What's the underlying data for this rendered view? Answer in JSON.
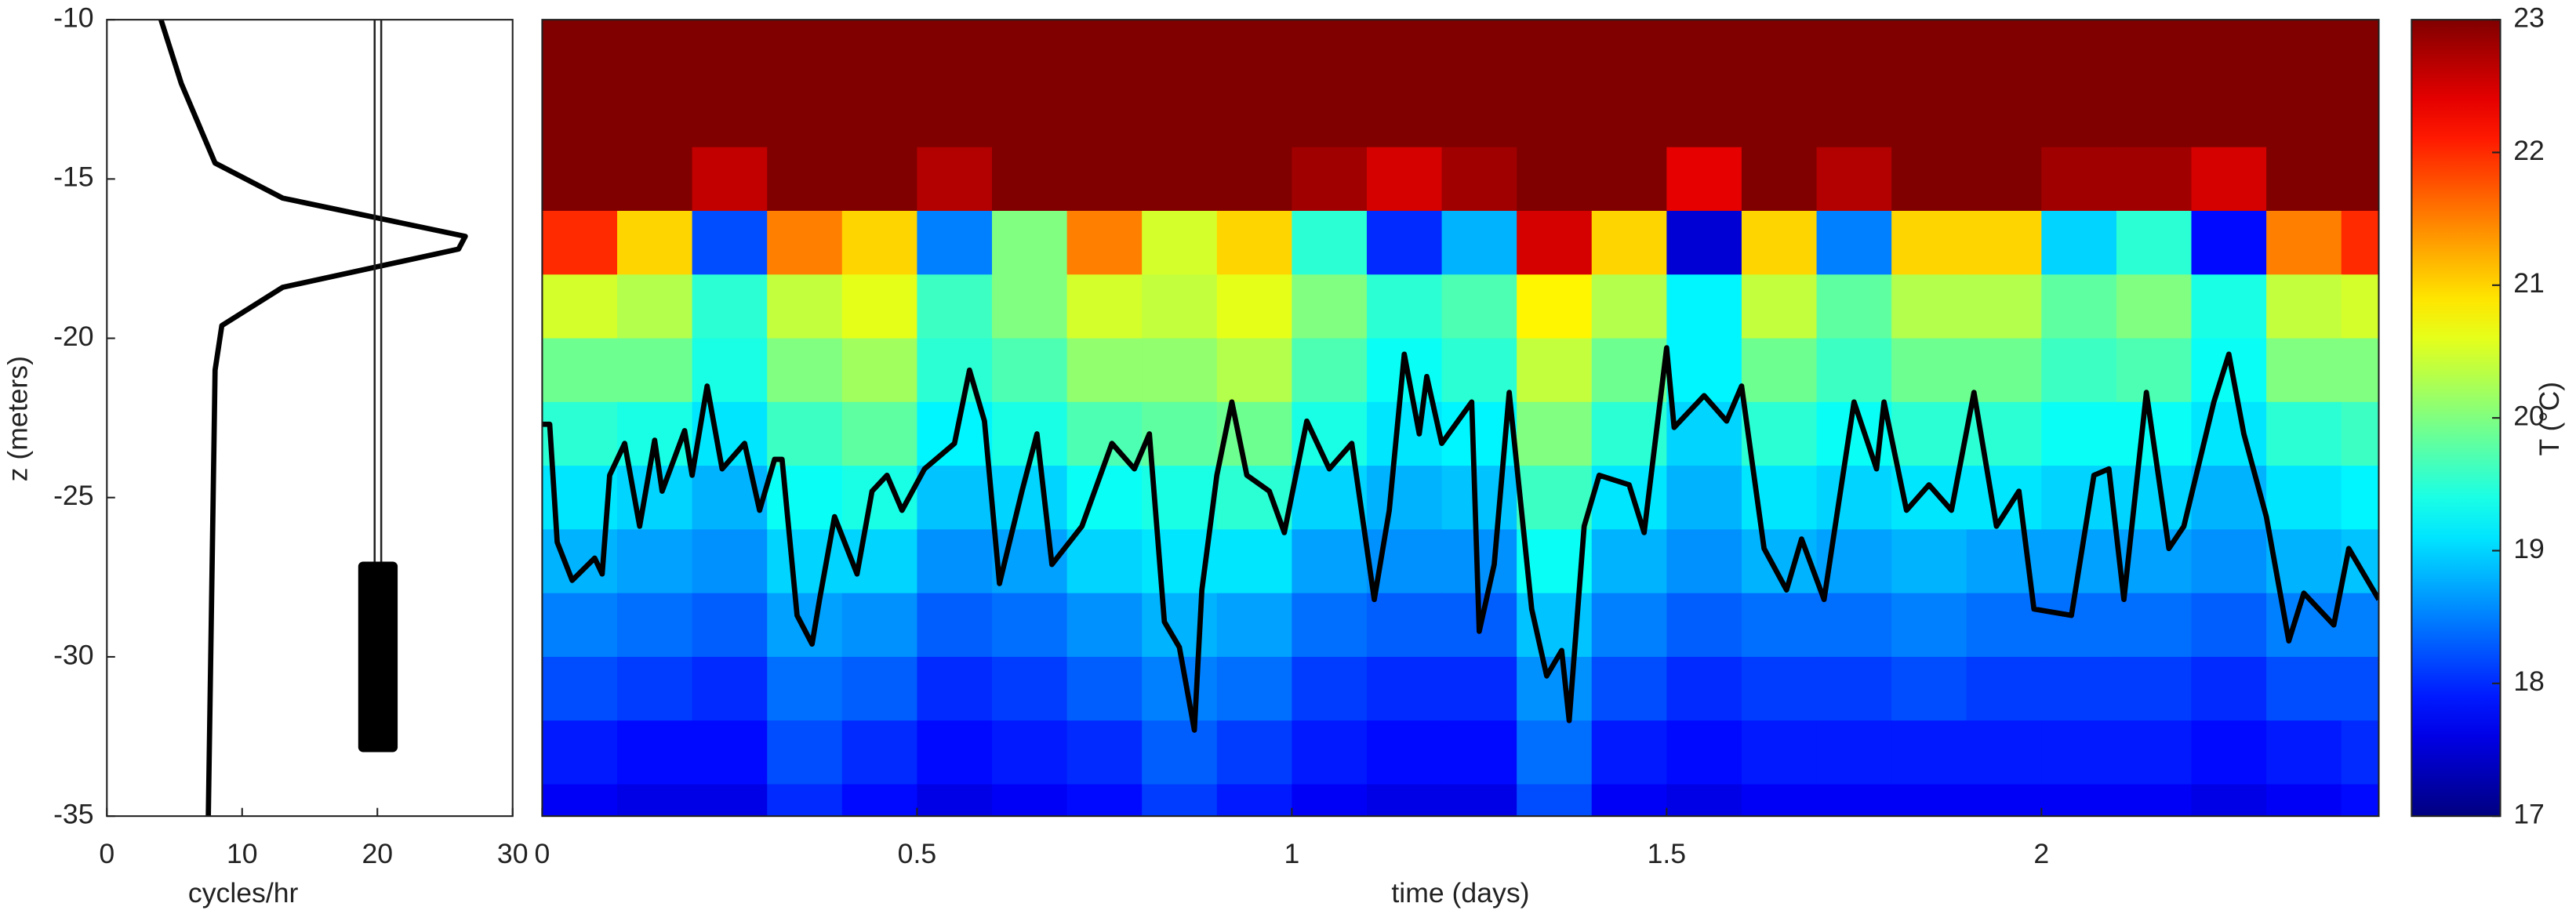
{
  "chart_data": [
    {
      "type": "line",
      "xlabel": "cycles/hr",
      "ylabel": "z (meters)",
      "xlim": [
        0,
        30
      ],
      "xticks": [
        0,
        10,
        20,
        30
      ],
      "ylim": [
        -35,
        -10
      ],
      "yticks": [
        -35,
        -30,
        -25,
        -20,
        -15,
        -10
      ],
      "color": "#000000",
      "x": [
        4,
        5.5,
        7,
        8,
        13,
        26.5,
        26,
        13,
        8.5,
        8,
        7.5
      ],
      "values": [
        -10,
        -12,
        -13.5,
        -14.5,
        -15.6,
        -16.8,
        -17.2,
        -18.4,
        -19.6,
        -21,
        -35
      ]
    },
    {
      "type": "heatmap",
      "xlabel": "time (days)",
      "xlim": [
        0,
        2.45
      ],
      "xticks": [
        0,
        0.5,
        1,
        1.5,
        2
      ],
      "ylim": [
        -35,
        -10
      ],
      "x": [
        0.05,
        0.15,
        0.25,
        0.35,
        0.45,
        0.55,
        0.65,
        0.75,
        0.85,
        0.95,
        1.05,
        1.15,
        1.25,
        1.35,
        1.45,
        1.55,
        1.65,
        1.75,
        1.85,
        1.95,
        2.05,
        2.15,
        2.25,
        2.35,
        2.45
      ],
      "y": [
        -11,
        -13,
        -15,
        -17,
        -19,
        -21,
        -23,
        -25,
        -27,
        -29,
        -31,
        -33,
        -35
      ],
      "values": [
        [
          23,
          23,
          23,
          23,
          23,
          23,
          23,
          23,
          23,
          23,
          23,
          23,
          23,
          23,
          23,
          23,
          23,
          23,
          23,
          23,
          23,
          23,
          23,
          23,
          23
        ],
        [
          23,
          23,
          23,
          23,
          23,
          23,
          23,
          23,
          23,
          23,
          23,
          23,
          23,
          23,
          23,
          23,
          23,
          23,
          23,
          23,
          23,
          23,
          23,
          23,
          23
        ],
        [
          23,
          23,
          22.6,
          23,
          23,
          22.7,
          23,
          23,
          23,
          23,
          22.8,
          22.5,
          22.8,
          23,
          23,
          22.4,
          23,
          22.7,
          23,
          23,
          22.8,
          22.8,
          22.5,
          23,
          23
        ],
        [
          22,
          21,
          18.2,
          21.5,
          21,
          18.5,
          20,
          21.5,
          20.5,
          21,
          19.5,
          18,
          18.8,
          22.5,
          21,
          17.5,
          21,
          18.5,
          21,
          21,
          19,
          19.5,
          17.8,
          21.5,
          22
        ],
        [
          20.5,
          20.3,
          19.5,
          20.4,
          20.6,
          19.6,
          20,
          20.5,
          20.4,
          20.6,
          20,
          19.5,
          19.7,
          20.8,
          20.3,
          19.2,
          20.4,
          19.8,
          20.3,
          20.3,
          19.8,
          20,
          19.4,
          20.4,
          20.5
        ],
        [
          19.9,
          19.9,
          19.4,
          20,
          20.2,
          19.5,
          19.7,
          20.1,
          20.1,
          20.3,
          19.7,
          19.3,
          19.5,
          20.4,
          19.9,
          19.2,
          19.9,
          19.6,
          19.9,
          19.9,
          19.6,
          19.7,
          19.3,
          20,
          20
        ],
        [
          19.5,
          19.4,
          19.1,
          19.6,
          19.8,
          19.2,
          19.4,
          19.7,
          19.8,
          19.9,
          19.4,
          19.1,
          19.2,
          20,
          19.5,
          19,
          19.5,
          19.3,
          19.5,
          19.5,
          19.3,
          19.3,
          19.1,
          19.5,
          19.6
        ],
        [
          19.1,
          19,
          18.8,
          19.3,
          19.4,
          18.9,
          19,
          19.3,
          19.4,
          19.5,
          19,
          18.8,
          18.9,
          19.6,
          19.1,
          18.8,
          19.1,
          19,
          19.1,
          19.1,
          19,
          19,
          18.8,
          19.1,
          19.2
        ],
        [
          18.8,
          18.7,
          18.6,
          19,
          19,
          18.6,
          18.7,
          19,
          19.1,
          19.1,
          18.7,
          18.6,
          18.6,
          19.3,
          18.8,
          18.6,
          18.8,
          18.7,
          18.8,
          18.7,
          18.7,
          18.7,
          18.6,
          18.8,
          18.9
        ],
        [
          18.5,
          18.4,
          18.3,
          18.7,
          18.6,
          18.3,
          18.4,
          18.6,
          18.8,
          18.7,
          18.4,
          18.3,
          18.3,
          18.9,
          18.5,
          18.3,
          18.4,
          18.4,
          18.5,
          18.4,
          18.4,
          18.4,
          18.3,
          18.5,
          18.5
        ],
        [
          18.2,
          18.1,
          18,
          18.4,
          18.3,
          18,
          18.1,
          18.3,
          18.5,
          18.4,
          18.1,
          18,
          18,
          18.6,
          18.2,
          18,
          18.1,
          18.1,
          18.2,
          18.1,
          18.1,
          18.1,
          18,
          18.2,
          18.2
        ],
        [
          17.9,
          17.8,
          17.8,
          18.2,
          18,
          17.8,
          17.9,
          18,
          18.3,
          18.1,
          17.9,
          17.8,
          17.8,
          18.4,
          17.9,
          17.8,
          17.9,
          17.9,
          17.9,
          17.9,
          17.9,
          17.9,
          17.8,
          17.9,
          18
        ],
        [
          17.7,
          17.6,
          17.6,
          18,
          17.8,
          17.6,
          17.7,
          17.8,
          18.1,
          17.9,
          17.7,
          17.6,
          17.6,
          18.2,
          17.7,
          17.6,
          17.7,
          17.7,
          17.7,
          17.7,
          17.7,
          17.7,
          17.6,
          17.7,
          17.8
        ]
      ],
      "colormap": "jet",
      "colorbar": {
        "label": "T (°C)",
        "lim": [
          17,
          23
        ],
        "ticks": [
          17,
          18,
          19,
          20,
          21,
          22,
          23
        ]
      },
      "line": {
        "color": "#000000",
        "x": [
          0,
          0.01,
          0.02,
          0.04,
          0.07,
          0.08,
          0.09,
          0.11,
          0.13,
          0.15,
          0.16,
          0.19,
          0.2,
          0.22,
          0.24,
          0.27,
          0.29,
          0.31,
          0.32,
          0.34,
          0.36,
          0.37,
          0.39,
          0.42,
          0.44,
          0.46,
          0.48,
          0.51,
          0.55,
          0.57,
          0.59,
          0.61,
          0.64,
          0.66,
          0.68,
          0.72,
          0.76,
          0.79,
          0.81,
          0.83,
          0.85,
          0.87,
          0.88,
          0.9,
          0.92,
          0.94,
          0.97,
          0.99,
          1.02,
          1.05,
          1.08,
          1.11,
          1.13,
          1.15,
          1.17,
          1.18,
          1.2,
          1.24,
          1.25,
          1.27,
          1.29,
          1.32,
          1.34,
          1.36,
          1.37,
          1.39,
          1.41,
          1.45,
          1.47,
          1.5,
          1.51,
          1.55,
          1.58,
          1.6,
          1.63,
          1.66,
          1.68,
          1.71,
          1.75,
          1.78,
          1.79,
          1.82,
          1.85,
          1.88,
          1.91,
          1.94,
          1.97,
          1.99,
          2.04,
          2.07,
          2.09,
          2.11,
          2.14,
          2.17,
          2.19,
          2.23,
          2.25,
          2.27,
          2.3,
          2.33,
          2.35,
          2.39,
          2.41,
          2.45
        ],
        "values": [
          -22.7,
          -22.7,
          -26.4,
          -27.6,
          -26.9,
          -27.4,
          -24.3,
          -23.3,
          -25.9,
          -23.2,
          -24.8,
          -22.9,
          -24.3,
          -21.5,
          -24.1,
          -23.3,
          -25.4,
          -23.8,
          -23.8,
          -28.7,
          -29.6,
          -28.2,
          -25.6,
          -27.4,
          -24.8,
          -24.3,
          -25.4,
          -24.1,
          -23.3,
          -21,
          -22.6,
          -27.7,
          -24.8,
          -23,
          -27.1,
          -25.9,
          -23.3,
          -24.1,
          -23,
          -28.9,
          -29.7,
          -32.3,
          -27.9,
          -24.3,
          -22,
          -24.3,
          -24.8,
          -26.1,
          -22.6,
          -24.1,
          -23.3,
          -28.2,
          -25.4,
          -20.5,
          -23,
          -21.2,
          -23.3,
          -22,
          -29.2,
          -27.1,
          -21.7,
          -28.5,
          -30.6,
          -29.8,
          -32,
          -25.9,
          -24.3,
          -24.6,
          -26.1,
          -20.3,
          -22.8,
          -21.8,
          -22.6,
          -21.5,
          -26.6,
          -27.9,
          -26.3,
          -28.2,
          -22,
          -24.1,
          -22,
          -25.4,
          -24.6,
          -25.4,
          -21.7,
          -25.9,
          -24.8,
          -28.5,
          -28.7,
          -24.3,
          -24.1,
          -28.2,
          -21.7,
          -26.6,
          -25.9,
          -22,
          -20.5,
          -23,
          -25.6,
          -29.5,
          -28,
          -29,
          -26.6,
          -28.2
        ]
      }
    }
  ]
}
